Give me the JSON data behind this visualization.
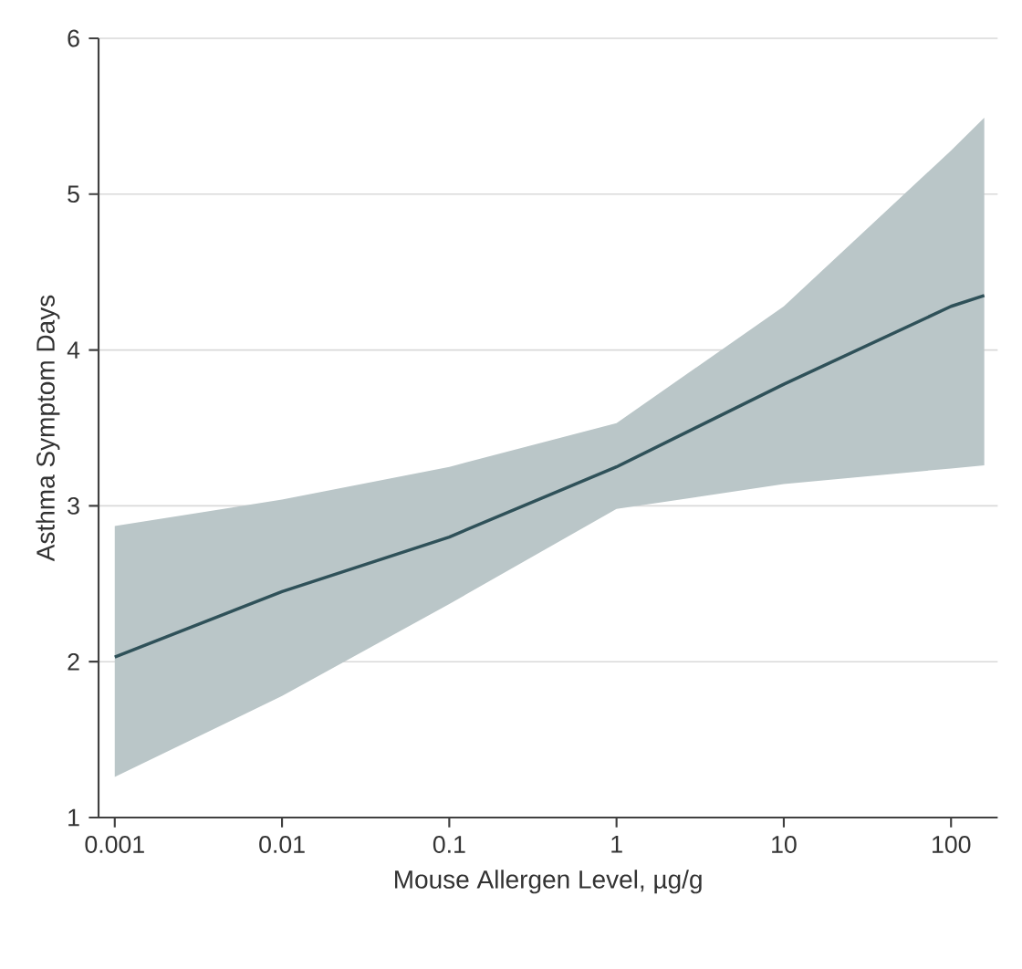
{
  "chart_data": {
    "type": "line",
    "xlabel": "Mouse Allergen Level, µg/g",
    "ylabel": "Asthma Symptom Days",
    "log": "x",
    "grid": "y",
    "xlim": [
      0.0008,
      190
    ],
    "xticks": [
      0.001,
      0.01,
      0.1,
      1,
      10,
      100
    ],
    "ylim": [
      1,
      6
    ],
    "yticks": [
      1,
      2,
      3,
      4,
      5,
      6
    ],
    "series": [
      {
        "color": "#2f5159",
        "x": [
          0.001,
          0.01,
          0.1,
          1,
          10,
          100,
          158
        ],
        "values": [
          2.03,
          2.45,
          2.8,
          3.25,
          3.78,
          4.28,
          4.35
        ],
        "lower": [
          1.26,
          1.78,
          2.37,
          2.98,
          3.14,
          3.24,
          3.26
        ],
        "upper": [
          2.87,
          3.04,
          3.25,
          3.53,
          4.28,
          5.28,
          5.49
        ]
      }
    ]
  }
}
